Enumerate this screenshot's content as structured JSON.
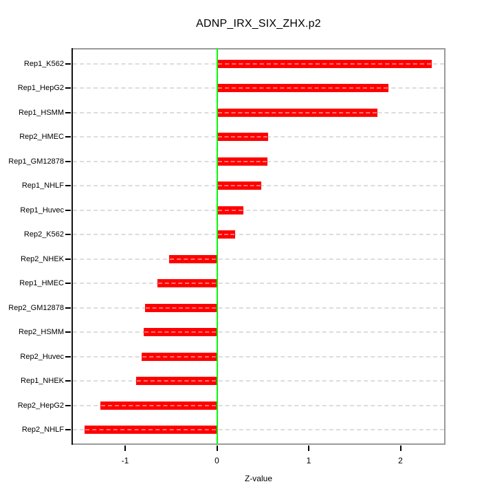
{
  "title": "ADNP_IRX_SIX_ZHX.p2",
  "chart_data": {
    "type": "bar",
    "orientation": "horizontal",
    "title": "ADNP_IRX_SIX_ZHX.p2",
    "xlabel": "Z-value",
    "ylabel": "",
    "categories": [
      "Rep1_K562",
      "Rep1_HepG2",
      "Rep1_HSMM",
      "Rep2_HMEC",
      "Rep1_GM12878",
      "Rep1_NHLF",
      "Rep1_Huvec",
      "Rep2_K562",
      "Rep2_NHEK",
      "Rep1_HMEC",
      "Rep2_GM12878",
      "Rep2_HSMM",
      "Rep2_Huvec",
      "Rep1_NHEK",
      "Rep2_HepG2",
      "Rep2_NHLF"
    ],
    "values": [
      2.34,
      1.87,
      1.75,
      0.56,
      0.55,
      0.48,
      0.29,
      0.2,
      -0.52,
      -0.65,
      -0.78,
      -0.8,
      -0.82,
      -0.88,
      -1.27,
      -1.44
    ],
    "xticks": [
      -1,
      0,
      1,
      2
    ],
    "xtick_labels": [
      "-1",
      "0",
      "1",
      "2"
    ],
    "xlim": [
      -1.58,
      2.49
    ],
    "grid": true,
    "legend_position": "none",
    "colors": {
      "bar": "#ff0000",
      "zero_line": "#00ff00",
      "grid": "#dcdcdc",
      "box": "#9a9a9a",
      "axis": "#000000",
      "text": "#000000",
      "background": "#ffffff"
    }
  }
}
